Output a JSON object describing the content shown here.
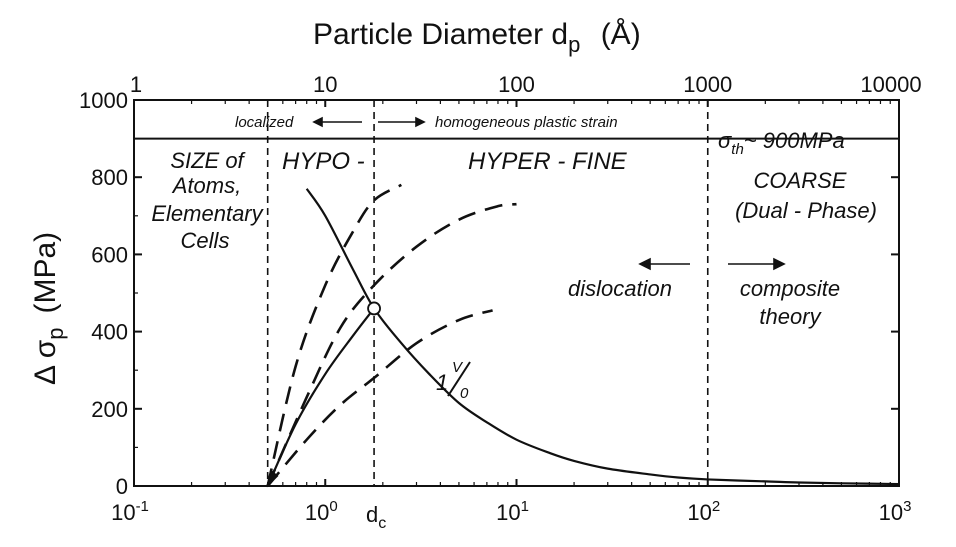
{
  "chart_data": {
    "type": "line",
    "title": "Particle Diameter  d",
    "title_subscript": "p",
    "title_unit": "(Å)",
    "ylabel_prefix": "Δ σ",
    "ylabel_subscript": "p",
    "ylabel_unit": "(MPa)",
    "bottom_axis": {
      "scale": "log",
      "range": [
        0.1,
        1000
      ],
      "ticks": [
        {
          "base": "10",
          "exp": "-1"
        },
        {
          "base": "10",
          "exp": "0"
        },
        {
          "base": "10",
          "exp": "1"
        },
        {
          "base": "10",
          "exp": "2"
        },
        {
          "base": "10",
          "exp": "3"
        }
      ],
      "dc_label": "d",
      "dc_sub": "c"
    },
    "top_axis": {
      "scale": "log",
      "range": [
        1,
        10000
      ],
      "ticks": [
        "1",
        "10",
        "100",
        "1000",
        "10000"
      ]
    },
    "y_axis": {
      "range": [
        0,
        1000
      ],
      "ticks": [
        "0",
        "200",
        "400",
        "600",
        "800",
        "1000"
      ]
    },
    "vertical_markers": [
      0.5,
      1.8,
      100
    ],
    "threshold": {
      "y": 900,
      "label_sigma": "σ",
      "label_sub": "th",
      "label_rest": "~ 900MPa"
    },
    "annotations": {
      "localized": "localized",
      "homogeneous": "homogeneous plastic strain",
      "size_line1": "SIZE of",
      "size_line2": "Atoms,",
      "size_line3": "Elementary",
      "size_line4": "Cells",
      "hypo": "HYPO -",
      "hyper": "HYPER - FINE",
      "coarse_line1": "COARSE",
      "coarse_line2": "(Dual - Phase)",
      "dislocation": "dislocation",
      "composite_line1": "composite",
      "composite_line2": "theory",
      "inv_one": "1",
      "inv_num": "V",
      "inv_den": "0"
    },
    "series": [
      {
        "style": "solid",
        "kind": "inverse",
        "x": [
          0.8,
          1.0,
          1.4,
          1.8,
          2.5,
          3.5,
          5,
          7,
          10,
          15,
          20,
          30,
          50,
          70,
          100,
          200,
          300,
          500,
          1000
        ],
        "y": [
          770,
          700,
          560,
          460,
          370,
          290,
          215,
          165,
          120,
          85,
          65,
          45,
          30,
          22,
          17,
          12,
          9,
          7,
          5
        ]
      },
      {
        "style": "solid",
        "kind": "rise",
        "x": [
          0.5,
          0.7,
          1.0,
          1.4,
          1.8
        ],
        "y": [
          0,
          160,
          290,
          390,
          460
        ]
      },
      {
        "style": "dashed",
        "kind": "rise",
        "x": [
          0.5,
          0.7,
          1.0,
          1.4,
          1.8,
          2.5
        ],
        "y": [
          0,
          310,
          520,
          660,
          740,
          780
        ]
      },
      {
        "style": "dashed",
        "kind": "rise",
        "x": [
          0.5,
          0.8,
          1.2,
          1.8,
          3.0,
          5.0,
          8.0,
          10.0
        ],
        "y": [
          0,
          230,
          410,
          520,
          620,
          690,
          725,
          730
        ]
      },
      {
        "style": "dashed",
        "kind": "rise",
        "x": [
          0.5,
          0.8,
          1.2,
          1.8,
          3.0,
          5.0,
          7.5
        ],
        "y": [
          0,
          120,
          210,
          280,
          370,
          430,
          455
        ]
      }
    ],
    "intersection": {
      "x": 1.8,
      "y": 460
    },
    "grid": false,
    "legend": "none"
  }
}
